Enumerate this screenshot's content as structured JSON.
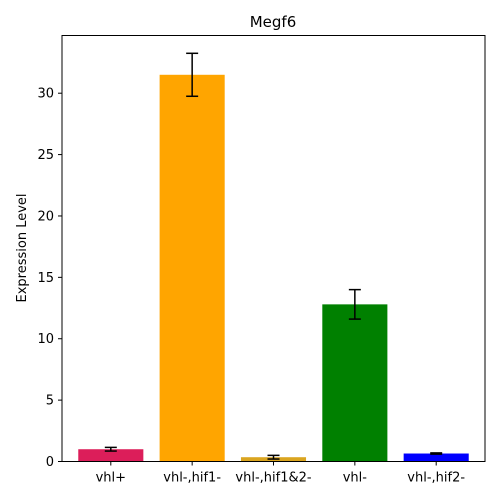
{
  "chart_data": {
    "type": "bar",
    "title": "Megf6",
    "xlabel": "",
    "ylabel": "Expression Level",
    "categories": [
      "vhl+",
      "vhl-,hif1-",
      "vhl-,hif1&2-",
      "vhl-",
      "vhl-,hif2-"
    ],
    "values": [
      1.0,
      31.5,
      0.35,
      12.8,
      0.65
    ],
    "errors": [
      0.15,
      1.75,
      0.15,
      1.2,
      0.05
    ],
    "colors": [
      "#dc1e5a",
      "#ffa500",
      "#daa520",
      "#008000",
      "#0000ff"
    ],
    "ylim": [
      0,
      34.7
    ],
    "yticks": [
      0,
      5,
      10,
      15,
      20,
      25,
      30
    ],
    "grid": false,
    "legend": "none"
  }
}
